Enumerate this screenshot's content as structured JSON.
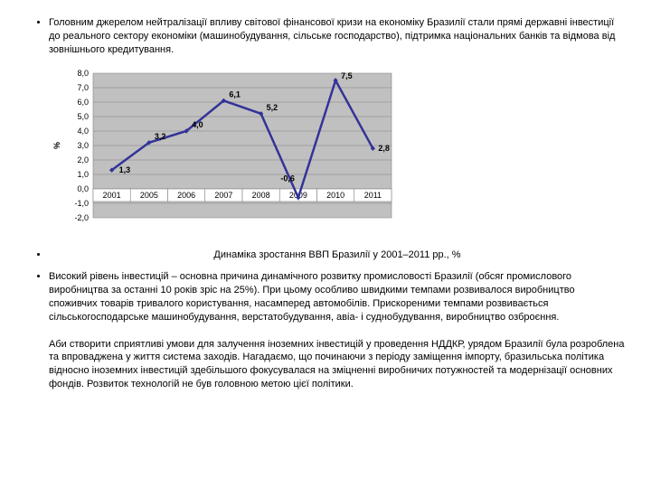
{
  "bullets": [
    "Головним джерелом нейтралізації впливу світової фінансової кризи на економіку Бразилії стали прямі державні інвестиції до реального сектору економіки (машинобудування, сільське господарство), підтримка національних банків та відмова від зовнішнього кредитування.",
    "Високий рівень інвестицій – основна причина динамічного розвитку промисловості Бразилії (обсяг промислового виробництва за останні 10 років зріс на 25%). При цьому особливо швидкими темпами розвивалося виробництво споживчих товарів тривалого користування, насамперед автомобілів. Прискореними темпами розвивається сільськогосподарське машинобудування, верстатобудування, авіа- і суднобудування, виробництво озброєння.",
    "Аби створити сприятливі умови для залучення іноземних інвестицій у проведення НДДКР, урядом Бразилії була розроблена та впроваджена у життя система заходів. Нагадаємо, що починаючи з періоду заміщення імпорту, бразильська політика відносно іноземних інвестицій здебільшого фокусувалася на зміцненні виробничих потужностей та модернізації основних фондів. Розвиток технологій не був головною метою цієї політики."
  ],
  "chart": {
    "type": "line",
    "caption": "Динаміка зростання ВВП Бразилії у 2001–2011 рр., %",
    "categories": [
      "2001",
      "2005",
      "2006",
      "2007",
      "2008",
      "2009",
      "2010",
      "2011"
    ],
    "values": [
      1.3,
      3.2,
      4.0,
      6.1,
      5.2,
      -0.6,
      7.5,
      2.8
    ],
    "value_labels": [
      "1,3",
      "3,2",
      "4,0",
      "6,1",
      "5,2",
      "-0,6",
      "7,5",
      "2,8"
    ],
    "ylabel": "%",
    "plot_bg": "#c0c0c0",
    "grid_color": "#808080",
    "line_color": "#333399",
    "marker_color": "#333399",
    "marker_size": 4,
    "line_width": 2.5,
    "ylim": [
      -2.0,
      8.0
    ],
    "ytick_step": 1.0,
    "ytick_labels": [
      "-2,0",
      "-1,0",
      "0,0",
      "1,0",
      "2,0",
      "3,0",
      "4,0",
      "5,0",
      "6,0",
      "7,0",
      "8,0"
    ],
    "font_size_axis": 9,
    "font_size_values": 9
  }
}
